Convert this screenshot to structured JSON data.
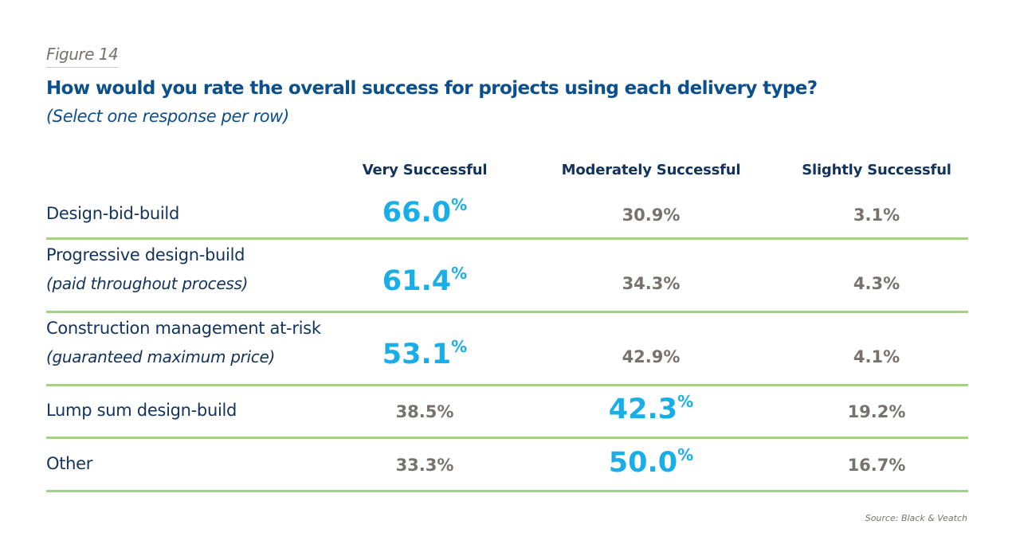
{
  "figure_label": "Figure 14",
  "chart_data": {
    "type": "table",
    "title": "How would you rate the overall success for projects using each delivery type?",
    "subtitle": "(Select one response per row)",
    "columns": [
      "Very Successful",
      "Moderately Successful",
      "Slightly Successful"
    ],
    "unit": "%",
    "rows": [
      {
        "label": "Design-bid-build",
        "sublabel": "",
        "values": [
          66.0,
          30.9,
          3.1
        ]
      },
      {
        "label": "Progressive design-build",
        "sublabel": "(paid throughout process)",
        "values": [
          61.4,
          34.3,
          4.3
        ]
      },
      {
        "label": "Construction management at-risk",
        "sublabel": "(guaranteed maximum price)",
        "values": [
          53.1,
          42.9,
          4.1
        ]
      },
      {
        "label": "Lump sum design-build",
        "sublabel": "",
        "values": [
          38.5,
          42.3,
          19.2
        ]
      },
      {
        "label": "Other",
        "sublabel": "",
        "values": [
          33.3,
          50.0,
          16.7
        ]
      }
    ],
    "highlight_color": "#19aee8",
    "rule_color": "#a3d18b"
  },
  "source": "Source: Black & Veatch"
}
